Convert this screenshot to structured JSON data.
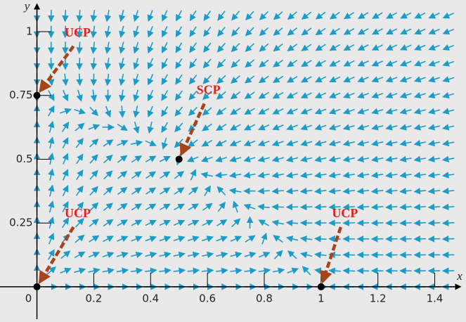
{
  "chart_data": {
    "type": "direction-field",
    "x_label": "x",
    "y_label": "y",
    "xlim": [
      -0.13,
      1.51
    ],
    "ylim": [
      -0.138,
      1.124
    ],
    "xticks": [
      0,
      0.2,
      0.4,
      0.6,
      0.8,
      1,
      1.2,
      1.4
    ],
    "yticks": [
      0.25,
      0.5,
      0.75,
      1
    ],
    "arrow_color": "#1e9cc8",
    "point_color": "#000000",
    "annotation_color": "#e3211c",
    "pointer_color": "#a8441c",
    "critical_points": [
      {
        "x": 0,
        "y": 0.75,
        "label": "UCP"
      },
      {
        "x": 0.5,
        "y": 0.5,
        "label": "SCP"
      },
      {
        "x": 0,
        "y": 0,
        "label": "UCP"
      },
      {
        "x": 1,
        "y": 0,
        "label": "UCP"
      }
    ]
  }
}
